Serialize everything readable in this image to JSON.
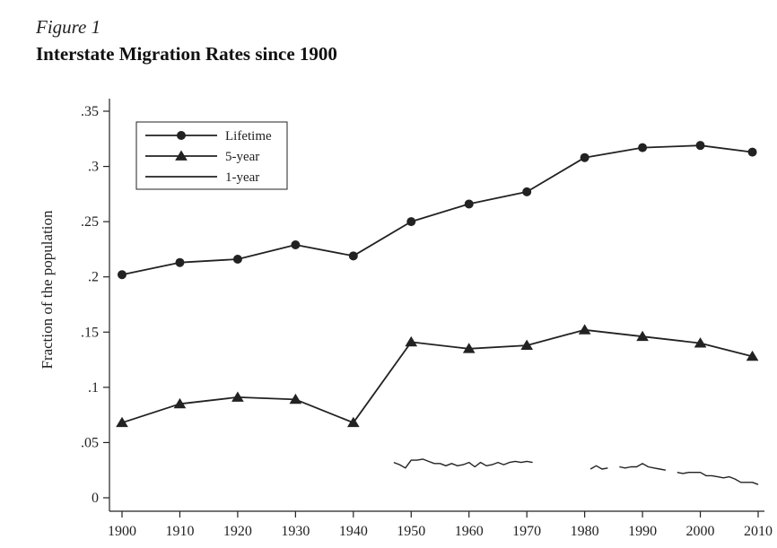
{
  "figure": {
    "label": "Figure 1",
    "title": "Interstate Migration Rates since 1900"
  },
  "chart_data": {
    "type": "line",
    "title": "Interstate Migration Rates since 1900",
    "xlabel": "",
    "ylabel": "Fraction of the population",
    "xlim": [
      1900,
      2010
    ],
    "ylim": [
      0,
      0.35
    ],
    "x_ticks": [
      1900,
      1910,
      1920,
      1930,
      1940,
      1950,
      1960,
      1970,
      1980,
      1990,
      2000,
      2010
    ],
    "x_tick_labels": [
      "1900",
      "1910",
      "1920",
      "1930",
      "1940",
      "1950",
      "1960",
      "1970",
      "1980",
      "1990",
      "2000",
      "2010"
    ],
    "y_ticks": [
      0,
      0.05,
      0.1,
      0.15,
      0.2,
      0.25,
      0.3,
      0.35
    ],
    "y_tick_labels": [
      "0",
      ".05",
      ".1",
      ".15",
      ".2",
      ".25",
      ".3",
      ".35"
    ],
    "grid": false,
    "legend_position": "top-left",
    "series": [
      {
        "name": "Lifetime",
        "marker": "circle",
        "x": [
          1900,
          1910,
          1920,
          1930,
          1940,
          1950,
          1960,
          1970,
          1980,
          1990,
          2000,
          2009
        ],
        "y": [
          0.202,
          0.213,
          0.216,
          0.229,
          0.219,
          0.25,
          0.266,
          0.277,
          0.308,
          0.317,
          0.319,
          0.313
        ]
      },
      {
        "name": "5-year",
        "marker": "triangle",
        "x": [
          1900,
          1910,
          1920,
          1930,
          1940,
          1950,
          1960,
          1970,
          1980,
          1990,
          2000,
          2009
        ],
        "y": [
          0.068,
          0.085,
          0.091,
          0.089,
          0.068,
          0.141,
          0.135,
          0.138,
          0.152,
          0.146,
          0.14,
          0.128
        ]
      },
      {
        "name": "1-year",
        "marker": "none",
        "segments": [
          {
            "x": [
              1947,
              1948,
              1949,
              1950,
              1951,
              1952,
              1953,
              1954,
              1955,
              1956,
              1957,
              1958,
              1959,
              1960,
              1961,
              1962,
              1963,
              1964,
              1965,
              1966,
              1967,
              1968,
              1969,
              1970,
              1971
            ],
            "y": [
              0.032,
              0.03,
              0.027,
              0.034,
              0.034,
              0.035,
              0.033,
              0.031,
              0.031,
              0.029,
              0.031,
              0.029,
              0.03,
              0.032,
              0.028,
              0.032,
              0.029,
              0.03,
              0.032,
              0.03,
              0.032,
              0.033,
              0.032,
              0.033,
              0.032
            ]
          },
          {
            "x": [
              1981,
              1982,
              1983,
              1984
            ],
            "y": [
              0.026,
              0.029,
              0.026,
              0.027
            ]
          },
          {
            "x": [
              1986,
              1987,
              1988,
              1989,
              1990,
              1991,
              1992,
              1993,
              1994
            ],
            "y": [
              0.028,
              0.027,
              0.028,
              0.028,
              0.031,
              0.028,
              0.027,
              0.026,
              0.025
            ]
          },
          {
            "x": [
              1996,
              1997,
              1998,
              1999,
              2000,
              2001,
              2002,
              2003,
              2004,
              2005,
              2006,
              2007,
              2008,
              2009,
              2010
            ],
            "y": [
              0.023,
              0.022,
              0.023,
              0.023,
              0.023,
              0.02,
              0.02,
              0.019,
              0.018,
              0.019,
              0.017,
              0.014,
              0.014,
              0.014,
              0.012
            ]
          }
        ]
      }
    ]
  }
}
